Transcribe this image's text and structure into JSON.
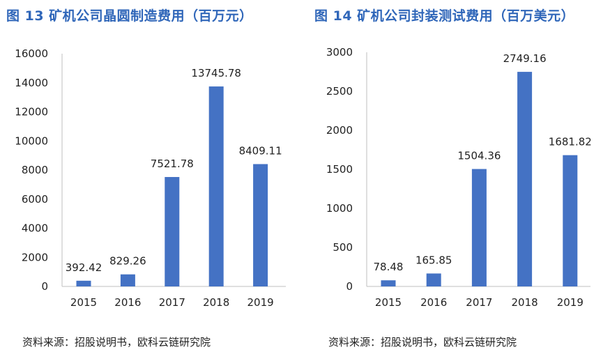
{
  "chart_data": [
    {
      "type": "bar",
      "title": "图 13 矿机公司晶圆制造费用（百万元）",
      "categories": [
        "2015",
        "2016",
        "2017",
        "2018",
        "2019"
      ],
      "values": [
        392.42,
        829.26,
        7521.78,
        13745.78,
        8409.11
      ],
      "value_labels": [
        "392.42",
        "829.26",
        "7521.78",
        "13745.78",
        "8409.11"
      ],
      "yticks": [
        "0",
        "2000",
        "4000",
        "6000",
        "8000",
        "10000",
        "12000",
        "14000",
        "16000"
      ],
      "ylim": [
        0,
        16000
      ],
      "xlabel": "",
      "ylabel": "",
      "grid": false,
      "bar_color": "#4472c4",
      "source": "资料来源：招股说明书，欧科云链研究院"
    },
    {
      "type": "bar",
      "title": "图 14 矿机公司封装测试费用（百万美元）",
      "categories": [
        "2015",
        "2016",
        "2017",
        "2018",
        "2019"
      ],
      "values": [
        78.48,
        165.85,
        1504.36,
        2749.16,
        1681.82
      ],
      "value_labels": [
        "78.48",
        "165.85",
        "1504.36",
        "2749.16",
        "1681.82"
      ],
      "yticks": [
        "0",
        "500",
        "1000",
        "1500",
        "2000",
        "2500",
        "3000"
      ],
      "ylim": [
        0,
        3000
      ],
      "xlabel": "",
      "ylabel": "",
      "grid": false,
      "bar_color": "#4472c4",
      "source": "资料来源：招股说明书，欧科云链研究院"
    }
  ]
}
